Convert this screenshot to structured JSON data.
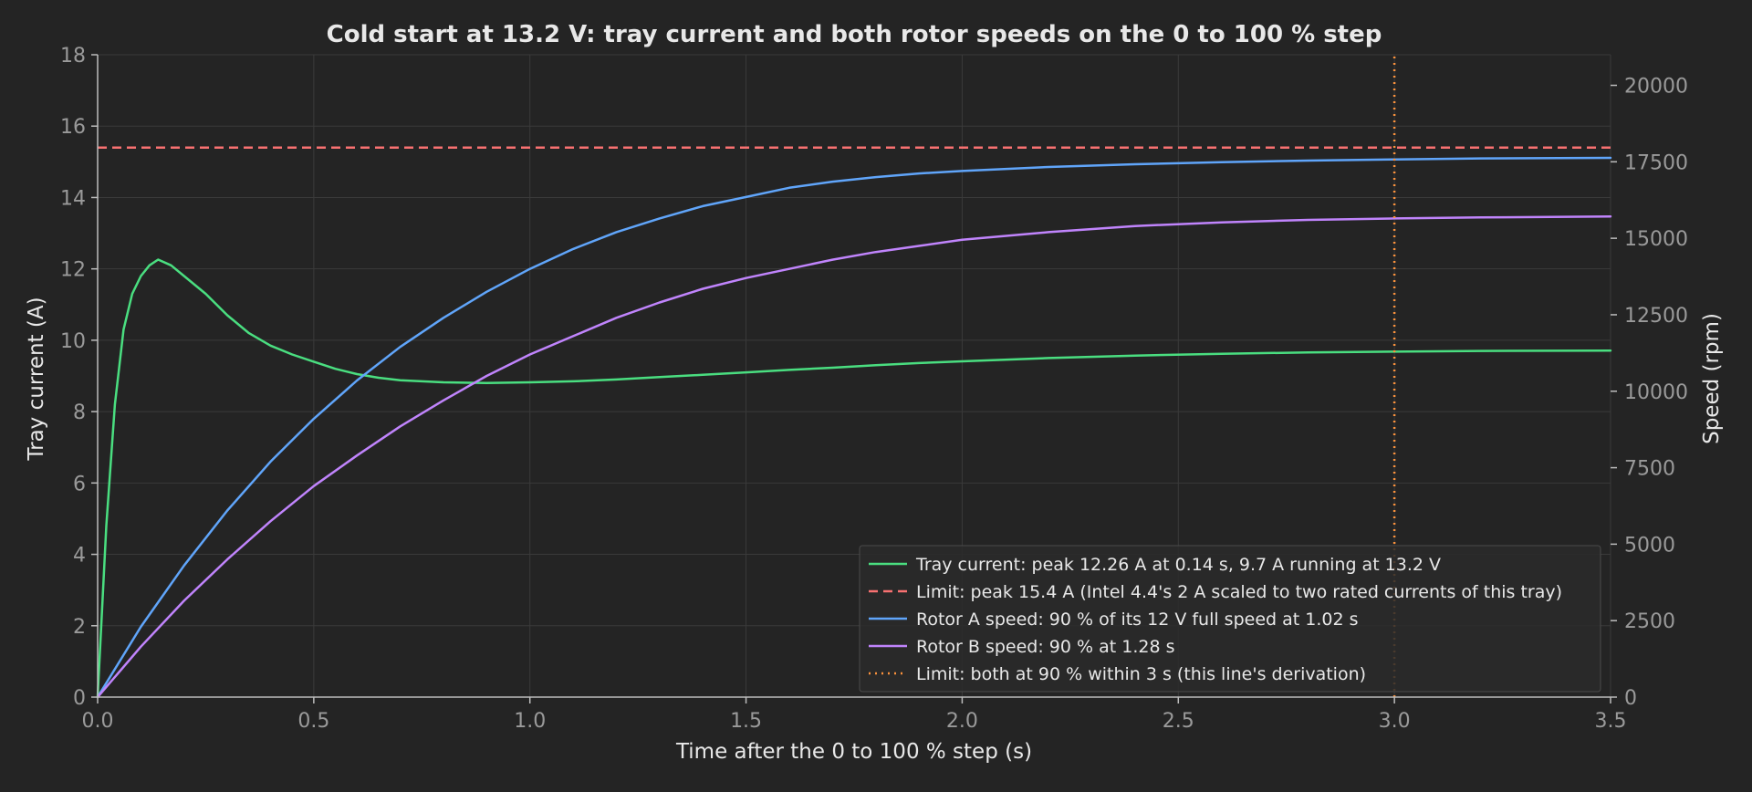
{
  "chart_data": {
    "type": "line",
    "title": "Cold start at 13.2 V: tray current and both rotor speeds on the 0 to 100 % step",
    "xlabel": "Time after the 0 to 100 % step (s)",
    "ylabel": "Tray current (A)",
    "y2label": "Speed (rpm)",
    "xlim": [
      0,
      3.5
    ],
    "ylim": [
      0,
      18
    ],
    "y2lim": [
      0,
      21000
    ],
    "xticks": [
      "0.0",
      "0.5",
      "1.0",
      "1.5",
      "2.0",
      "2.5",
      "3.0",
      "3.5"
    ],
    "yticks": [
      "0",
      "2",
      "4",
      "6",
      "8",
      "10",
      "12",
      "14",
      "16",
      "18"
    ],
    "y2ticks": [
      "0",
      "2500",
      "5000",
      "7500",
      "10000",
      "12500",
      "15000",
      "17500",
      "20000"
    ],
    "grid": true,
    "legend_position": "lower-right",
    "series": [
      {
        "name": "Tray current: peak 12.26 A at 0.14 s, 9.7 A running at 13.2 V",
        "axis": "left",
        "color": "#4ade80",
        "style": "solid",
        "x": [
          0,
          0.02,
          0.04,
          0.06,
          0.08,
          0.1,
          0.12,
          0.14,
          0.17,
          0.2,
          0.25,
          0.3,
          0.35,
          0.4,
          0.45,
          0.5,
          0.55,
          0.6,
          0.65,
          0.7,
          0.8,
          0.9,
          1.0,
          1.1,
          1.2,
          1.3,
          1.4,
          1.5,
          1.6,
          1.7,
          1.8,
          1.9,
          2.0,
          2.2,
          2.4,
          2.6,
          2.8,
          3.0,
          3.2,
          3.5
        ],
        "values": [
          0,
          4.8,
          8.2,
          10.3,
          11.3,
          11.8,
          12.1,
          12.26,
          12.1,
          11.8,
          11.3,
          10.7,
          10.2,
          9.85,
          9.6,
          9.4,
          9.2,
          9.05,
          8.95,
          8.88,
          8.82,
          8.8,
          8.82,
          8.85,
          8.9,
          8.97,
          9.03,
          9.1,
          9.17,
          9.23,
          9.3,
          9.36,
          9.41,
          9.5,
          9.57,
          9.62,
          9.66,
          9.68,
          9.7,
          9.71
        ]
      },
      {
        "name": "Limit: peak 15.4 A (Intel 4.4's 2 A scaled to two rated currents of this tray)",
        "axis": "left",
        "color": "#f87171",
        "style": "dashed",
        "x": [
          0,
          3.5
        ],
        "values": [
          15.4,
          15.4
        ]
      },
      {
        "name": "Rotor A speed: 90 % of its 12 V full speed at 1.02 s",
        "axis": "right",
        "color": "#60a5fa",
        "style": "solid",
        "x": [
          0,
          0.1,
          0.2,
          0.3,
          0.4,
          0.5,
          0.6,
          0.7,
          0.8,
          0.9,
          1.0,
          1.1,
          1.2,
          1.3,
          1.4,
          1.5,
          1.6,
          1.7,
          1.8,
          1.9,
          2.0,
          2.2,
          2.4,
          2.6,
          2.8,
          3.0,
          3.2,
          3.5
        ],
        "values": [
          0,
          2300,
          4300,
          6100,
          7700,
          9100,
          10350,
          11450,
          12400,
          13250,
          14000,
          14650,
          15200,
          15650,
          16050,
          16350,
          16650,
          16850,
          17000,
          17120,
          17200,
          17330,
          17420,
          17490,
          17540,
          17580,
          17610,
          17630
        ]
      },
      {
        "name": "Rotor B speed: 90 % at 1.28 s",
        "axis": "right",
        "color": "#c084fc",
        "style": "solid",
        "x": [
          0,
          0.1,
          0.2,
          0.3,
          0.4,
          0.5,
          0.6,
          0.7,
          0.8,
          0.9,
          1.0,
          1.1,
          1.2,
          1.3,
          1.4,
          1.5,
          1.6,
          1.7,
          1.8,
          1.9,
          2.0,
          2.2,
          2.4,
          2.6,
          2.8,
          3.0,
          3.2,
          3.5
        ],
        "values": [
          0,
          1650,
          3150,
          4500,
          5750,
          6900,
          7900,
          8850,
          9700,
          10500,
          11200,
          11800,
          12400,
          12900,
          13350,
          13700,
          14000,
          14300,
          14550,
          14750,
          14950,
          15200,
          15400,
          15520,
          15600,
          15650,
          15680,
          15710
        ]
      },
      {
        "name": "Limit: both at 90 % within 3 s (this line's derivation)",
        "axis": "vertical",
        "color": "#fb923c",
        "style": "dotted",
        "x": [
          3.0,
          3.0
        ],
        "values": [
          0,
          18
        ]
      }
    ]
  }
}
